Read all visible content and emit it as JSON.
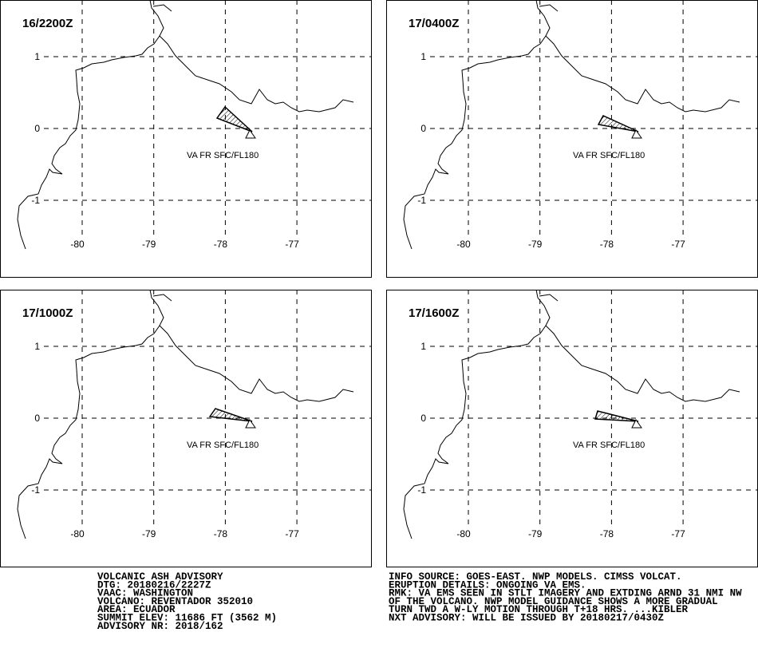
{
  "panels": [
    {
      "time": "16/2200Z",
      "label": "VA FR SFC/FL180"
    },
    {
      "time": "17/0400Z",
      "label": "VA FR SFC/FL180"
    },
    {
      "time": "17/1000Z",
      "label": "VA FR SFC/FL180"
    },
    {
      "time": "17/1600Z",
      "label": "VA FR SFC/FL180"
    }
  ],
  "lat_ticks": [
    1,
    0,
    -1
  ],
  "lon_ticks": [
    -80,
    -79,
    -78,
    -77
  ],
  "advisory_left": [
    "VOLCANIC ASH ADVISORY",
    "DTG: 20180216/2227Z",
    "VAAC: WASHINGTON",
    "VOLCANO: REVENTADOR 352010",
    "AREA: ECUADOR",
    "SUMMIT ELEV: 11686 FT (3562 M)",
    "ADVISORY NR: 2018/162"
  ],
  "advisory_right": [
    "INFO SOURCE: GOES-EAST. NWP MODELS. CIMSS VOLCAT.",
    "ERUPTION DETAILS: ONGOING VA EMS.",
    "RMK: VA EMS SEEN IN STLT IMAGERY AND EXTDING ARND 31 NMI NW",
    "OF THE VOLCANO. NWP MODEL GUIDANCE SHOWS A MORE GRADUAL",
    "TURN TWD A W-LY MOTION THROUGH T+18 HRS. ...KIBLER",
    "NXT ADVISORY: WILL BE ISSUED BY 20180217/0430Z"
  ]
}
